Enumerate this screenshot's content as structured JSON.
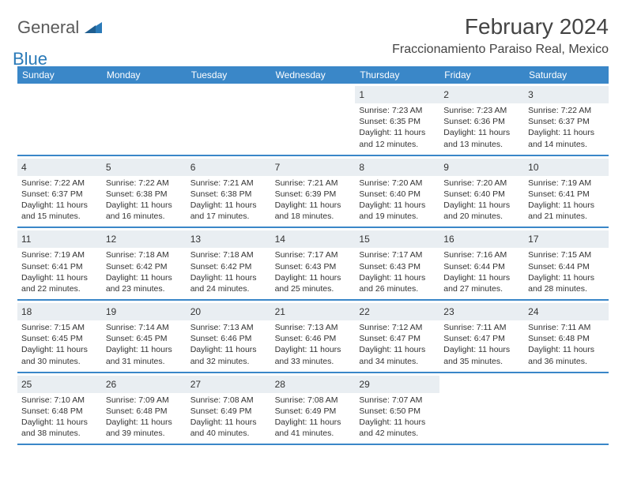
{
  "brand": {
    "part1": "General",
    "part2": "Blue",
    "color_general": "#5a5a5a",
    "color_blue": "#2a7ab8"
  },
  "title": "February 2024",
  "location": "Fraccionamiento Paraiso Real, Mexico",
  "header_bg": "#3a87c8",
  "header_fg": "#ffffff",
  "daynum_bg": "#e9eef2",
  "border_color": "#3a87c8",
  "text_color": "#333333",
  "weekdays": [
    "Sunday",
    "Monday",
    "Tuesday",
    "Wednesday",
    "Thursday",
    "Friday",
    "Saturday"
  ],
  "weeks": [
    [
      {
        "n": "",
        "sunrise": "",
        "sunset": "",
        "daylight": ""
      },
      {
        "n": "",
        "sunrise": "",
        "sunset": "",
        "daylight": ""
      },
      {
        "n": "",
        "sunrise": "",
        "sunset": "",
        "daylight": ""
      },
      {
        "n": "",
        "sunrise": "",
        "sunset": "",
        "daylight": ""
      },
      {
        "n": "1",
        "sunrise": "Sunrise: 7:23 AM",
        "sunset": "Sunset: 6:35 PM",
        "daylight": "Daylight: 11 hours and 12 minutes."
      },
      {
        "n": "2",
        "sunrise": "Sunrise: 7:23 AM",
        "sunset": "Sunset: 6:36 PM",
        "daylight": "Daylight: 11 hours and 13 minutes."
      },
      {
        "n": "3",
        "sunrise": "Sunrise: 7:22 AM",
        "sunset": "Sunset: 6:37 PM",
        "daylight": "Daylight: 11 hours and 14 minutes."
      }
    ],
    [
      {
        "n": "4",
        "sunrise": "Sunrise: 7:22 AM",
        "sunset": "Sunset: 6:37 PM",
        "daylight": "Daylight: 11 hours and 15 minutes."
      },
      {
        "n": "5",
        "sunrise": "Sunrise: 7:22 AM",
        "sunset": "Sunset: 6:38 PM",
        "daylight": "Daylight: 11 hours and 16 minutes."
      },
      {
        "n": "6",
        "sunrise": "Sunrise: 7:21 AM",
        "sunset": "Sunset: 6:38 PM",
        "daylight": "Daylight: 11 hours and 17 minutes."
      },
      {
        "n": "7",
        "sunrise": "Sunrise: 7:21 AM",
        "sunset": "Sunset: 6:39 PM",
        "daylight": "Daylight: 11 hours and 18 minutes."
      },
      {
        "n": "8",
        "sunrise": "Sunrise: 7:20 AM",
        "sunset": "Sunset: 6:40 PM",
        "daylight": "Daylight: 11 hours and 19 minutes."
      },
      {
        "n": "9",
        "sunrise": "Sunrise: 7:20 AM",
        "sunset": "Sunset: 6:40 PM",
        "daylight": "Daylight: 11 hours and 20 minutes."
      },
      {
        "n": "10",
        "sunrise": "Sunrise: 7:19 AM",
        "sunset": "Sunset: 6:41 PM",
        "daylight": "Daylight: 11 hours and 21 minutes."
      }
    ],
    [
      {
        "n": "11",
        "sunrise": "Sunrise: 7:19 AM",
        "sunset": "Sunset: 6:41 PM",
        "daylight": "Daylight: 11 hours and 22 minutes."
      },
      {
        "n": "12",
        "sunrise": "Sunrise: 7:18 AM",
        "sunset": "Sunset: 6:42 PM",
        "daylight": "Daylight: 11 hours and 23 minutes."
      },
      {
        "n": "13",
        "sunrise": "Sunrise: 7:18 AM",
        "sunset": "Sunset: 6:42 PM",
        "daylight": "Daylight: 11 hours and 24 minutes."
      },
      {
        "n": "14",
        "sunrise": "Sunrise: 7:17 AM",
        "sunset": "Sunset: 6:43 PM",
        "daylight": "Daylight: 11 hours and 25 minutes."
      },
      {
        "n": "15",
        "sunrise": "Sunrise: 7:17 AM",
        "sunset": "Sunset: 6:43 PM",
        "daylight": "Daylight: 11 hours and 26 minutes."
      },
      {
        "n": "16",
        "sunrise": "Sunrise: 7:16 AM",
        "sunset": "Sunset: 6:44 PM",
        "daylight": "Daylight: 11 hours and 27 minutes."
      },
      {
        "n": "17",
        "sunrise": "Sunrise: 7:15 AM",
        "sunset": "Sunset: 6:44 PM",
        "daylight": "Daylight: 11 hours and 28 minutes."
      }
    ],
    [
      {
        "n": "18",
        "sunrise": "Sunrise: 7:15 AM",
        "sunset": "Sunset: 6:45 PM",
        "daylight": "Daylight: 11 hours and 30 minutes."
      },
      {
        "n": "19",
        "sunrise": "Sunrise: 7:14 AM",
        "sunset": "Sunset: 6:45 PM",
        "daylight": "Daylight: 11 hours and 31 minutes."
      },
      {
        "n": "20",
        "sunrise": "Sunrise: 7:13 AM",
        "sunset": "Sunset: 6:46 PM",
        "daylight": "Daylight: 11 hours and 32 minutes."
      },
      {
        "n": "21",
        "sunrise": "Sunrise: 7:13 AM",
        "sunset": "Sunset: 6:46 PM",
        "daylight": "Daylight: 11 hours and 33 minutes."
      },
      {
        "n": "22",
        "sunrise": "Sunrise: 7:12 AM",
        "sunset": "Sunset: 6:47 PM",
        "daylight": "Daylight: 11 hours and 34 minutes."
      },
      {
        "n": "23",
        "sunrise": "Sunrise: 7:11 AM",
        "sunset": "Sunset: 6:47 PM",
        "daylight": "Daylight: 11 hours and 35 minutes."
      },
      {
        "n": "24",
        "sunrise": "Sunrise: 7:11 AM",
        "sunset": "Sunset: 6:48 PM",
        "daylight": "Daylight: 11 hours and 36 minutes."
      }
    ],
    [
      {
        "n": "25",
        "sunrise": "Sunrise: 7:10 AM",
        "sunset": "Sunset: 6:48 PM",
        "daylight": "Daylight: 11 hours and 38 minutes."
      },
      {
        "n": "26",
        "sunrise": "Sunrise: 7:09 AM",
        "sunset": "Sunset: 6:48 PM",
        "daylight": "Daylight: 11 hours and 39 minutes."
      },
      {
        "n": "27",
        "sunrise": "Sunrise: 7:08 AM",
        "sunset": "Sunset: 6:49 PM",
        "daylight": "Daylight: 11 hours and 40 minutes."
      },
      {
        "n": "28",
        "sunrise": "Sunrise: 7:08 AM",
        "sunset": "Sunset: 6:49 PM",
        "daylight": "Daylight: 11 hours and 41 minutes."
      },
      {
        "n": "29",
        "sunrise": "Sunrise: 7:07 AM",
        "sunset": "Sunset: 6:50 PM",
        "daylight": "Daylight: 11 hours and 42 minutes."
      },
      {
        "n": "",
        "sunrise": "",
        "sunset": "",
        "daylight": ""
      },
      {
        "n": "",
        "sunrise": "",
        "sunset": "",
        "daylight": ""
      }
    ]
  ]
}
